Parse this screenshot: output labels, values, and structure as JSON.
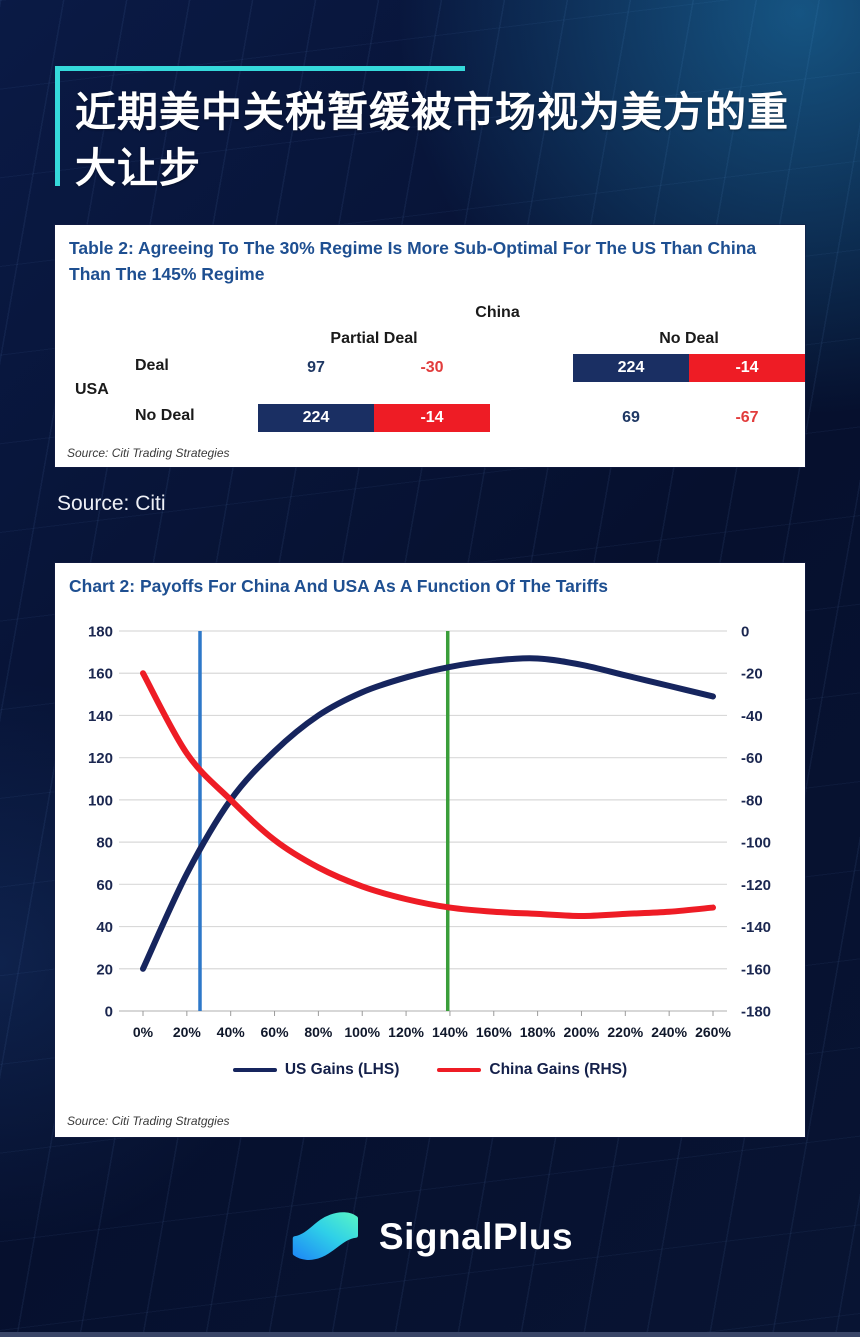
{
  "page": {
    "title_lines": [
      "近期美中关税暂缓被市场视为美方的重",
      "大让步"
    ],
    "source_note": "Source: Citi",
    "brand": "SignalPlus"
  },
  "colors": {
    "background": "#07112e",
    "accent_teal": "#35d9db",
    "card": "#ffffff",
    "heading_blue": "#1e4f91",
    "matrix_navy": "#1a2f63",
    "matrix_red": "#ee1c25",
    "vline_blue": "#2e78c9",
    "vline_green": "#3a9e3a"
  },
  "table_card": {
    "title": "Table 2: Agreeing To The 30% Regime Is More Sub-Optimal For The US Than China Than The 145% Regime",
    "column_group": "China",
    "row_group": "USA",
    "column_headers": [
      "Partial Deal",
      "No Deal"
    ],
    "row_headers": [
      "Deal",
      "No Deal"
    ],
    "cells": [
      {
        "row": "Deal",
        "col": "Partial Deal",
        "us": "97",
        "china": "-30",
        "highlighted": false
      },
      {
        "row": "Deal",
        "col": "No Deal",
        "us": "224",
        "china": "-14",
        "highlighted": true
      },
      {
        "row": "No Deal",
        "col": "Partial Deal",
        "us": "224",
        "china": "-14",
        "highlighted": true
      },
      {
        "row": "No Deal",
        "col": "No Deal",
        "us": "69",
        "china": "-67",
        "highlighted": false
      }
    ],
    "source": "Source: Citi Trading Strategies"
  },
  "chart_card": {
    "title": "Chart 2: Payoffs For China And USA As A Function Of The Tariffs",
    "source": "Source: Citi Trading Stratggies"
  },
  "chart_data": {
    "type": "line",
    "title": "Chart 2: Payoffs For China And USA As A Function Of The Tariffs",
    "categories": [
      "0%",
      "20%",
      "40%",
      "60%",
      "80%",
      "100%",
      "120%",
      "140%",
      "160%",
      "180%",
      "200%",
      "220%",
      "240%",
      "260%"
    ],
    "left_axis": {
      "min": 0,
      "max": 180,
      "step": 20
    },
    "right_axis": {
      "min": -180,
      "max": 0,
      "step": 20
    },
    "series": [
      {
        "name": "US Gains (LHS)",
        "axis": "left",
        "color": "#16255e",
        "values": [
          20,
          65,
          100,
          123,
          140,
          151,
          158,
          163,
          166,
          167,
          164,
          159,
          154,
          149
        ]
      },
      {
        "name": "China Gains (RHS)",
        "axis": "right",
        "color": "#ee1c25",
        "values": [
          -20,
          -58,
          -80,
          -99,
          -112,
          -121,
          -127,
          -131,
          -133,
          -134,
          -135,
          -134,
          -133,
          -131
        ]
      }
    ],
    "vertical_markers": [
      {
        "x_percent": 26,
        "color": "#2e78c9",
        "name": "30-percent-regime marker"
      },
      {
        "x_percent": 139,
        "color": "#3a9e3a",
        "name": "145-percent-regime marker"
      }
    ],
    "legend_position": "bottom",
    "grid": true
  }
}
